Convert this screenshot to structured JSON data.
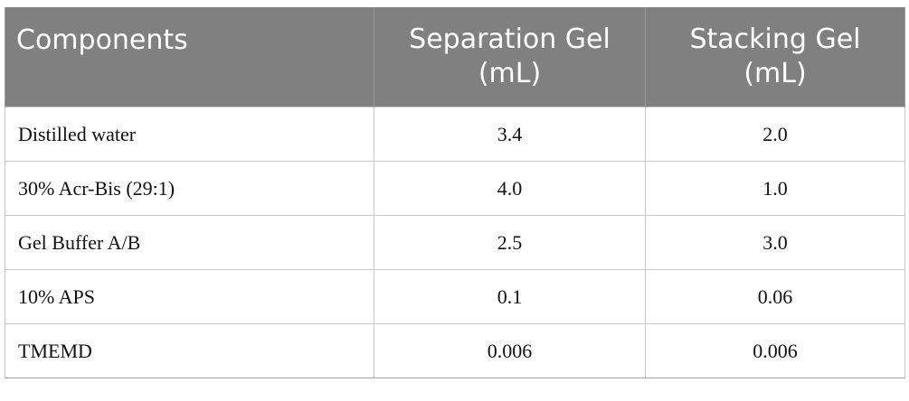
{
  "table": {
    "headers": [
      {
        "lines": [
          "Components"
        ]
      },
      {
        "lines": [
          "Separation Gel",
          "(mL)"
        ]
      },
      {
        "lines": [
          "Stacking Gel",
          "(mL)"
        ]
      }
    ],
    "rows": [
      [
        "Distilled water",
        "3.4",
        "2.0"
      ],
      [
        "30% Acr-Bis (29:1)",
        "4.0",
        "1.0"
      ],
      [
        "Gel Buffer A/B",
        "2.5",
        "3.0"
      ],
      [
        "10% APS",
        "0.1",
        "0.06"
      ],
      [
        "TMEMD",
        "0.006",
        "0.006"
      ]
    ]
  },
  "colors": {
    "header_background": "#808080",
    "header_text": "#ffffff",
    "grid_line": "#c8c8c8"
  }
}
